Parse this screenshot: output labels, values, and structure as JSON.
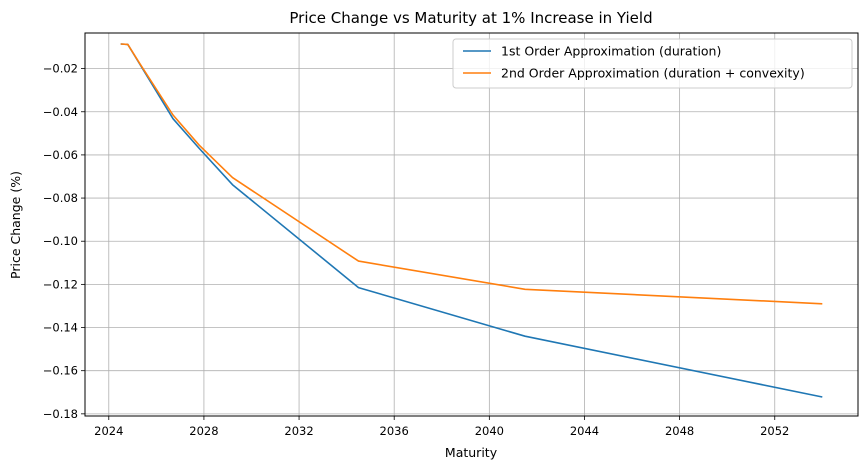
{
  "chart_data": {
    "type": "line",
    "title": "Price Change vs Maturity at 1% Increase in Yield",
    "xlabel": "Maturity",
    "ylabel": "Price Change (%)",
    "xlim": [
      2023.0,
      2055.5
    ],
    "ylim": [
      -0.181,
      -0.0035
    ],
    "xticks": [
      2024,
      2028,
      2032,
      2036,
      2040,
      2044,
      2048,
      2052
    ],
    "yticks": [
      -0.18,
      -0.16,
      -0.14,
      -0.12,
      -0.1,
      -0.08,
      -0.06,
      -0.04,
      -0.02
    ],
    "ytick_labels": [
      "−0.18",
      "−0.16",
      "−0.14",
      "−0.12",
      "−0.10",
      "−0.08",
      "−0.06",
      "−0.04",
      "−0.02"
    ],
    "grid": true,
    "legend_position": "top-right",
    "series": [
      {
        "name": "1st Order Approximation (duration)",
        "color": "#1f77b4",
        "x": [
          2024.5,
          2024.8,
          2025.3,
          2026.7,
          2027.8,
          2029.2,
          2034.5,
          2041.5,
          2054.0
        ],
        "y": [
          -0.0086,
          -0.0088,
          -0.0178,
          -0.0432,
          -0.057,
          -0.0738,
          -0.1215,
          -0.144,
          -0.1722
        ]
      },
      {
        "name": "2nd Order Approximation (duration + convexity)",
        "color": "#ff7f0e",
        "x": [
          2024.5,
          2024.8,
          2025.3,
          2026.7,
          2027.8,
          2029.2,
          2034.5,
          2041.5,
          2054.0
        ],
        "y": [
          -0.0086,
          -0.0088,
          -0.0176,
          -0.0415,
          -0.0555,
          -0.0705,
          -0.1092,
          -0.1223,
          -0.129
        ]
      }
    ]
  }
}
